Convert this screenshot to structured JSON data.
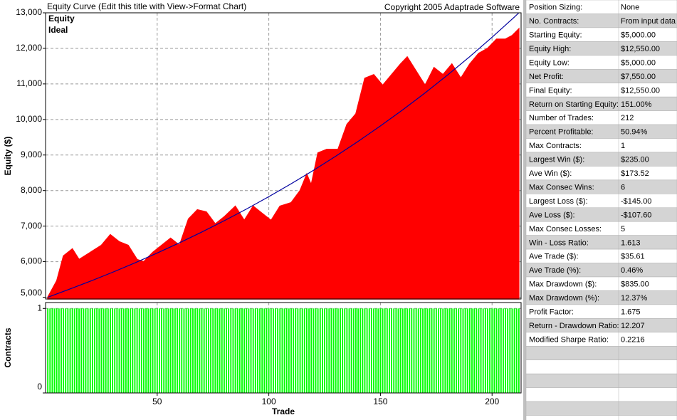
{
  "chart_data": [
    {
      "type": "area",
      "title": "Equity Curve (Edit this title with View->Format Chart)",
      "subtitle": "Copyright 2005 Adaptrade Software",
      "ylabel": "Equity ($)",
      "xlim": [
        0,
        213
      ],
      "xticks": [
        50,
        100,
        150,
        200
      ],
      "ylim": [
        4950,
        13000
      ],
      "yticks": [
        {
          "value": 5000,
          "label": "5,000"
        },
        {
          "value": 6000,
          "label": "6,000"
        },
        {
          "value": 7000,
          "label": "7,000"
        },
        {
          "value": 8000,
          "label": "8,000"
        },
        {
          "value": 9000,
          "label": "9,000"
        },
        {
          "value": 10000,
          "label": "10,000"
        },
        {
          "value": 11000,
          "label": "11,000"
        },
        {
          "value": 12000,
          "label": "12,000"
        },
        {
          "value": 13000,
          "label": "13,000"
        }
      ],
      "grid": true,
      "series": [
        {
          "name": "Equity",
          "color": "#ff0000",
          "x": [
            1,
            5,
            8,
            12,
            15,
            20,
            25,
            29,
            33,
            37,
            41,
            44,
            48,
            52,
            56,
            60,
            64,
            68,
            72,
            76,
            80,
            85,
            89,
            93,
            97,
            101,
            105,
            110,
            114,
            117,
            119,
            122,
            126,
            131,
            135,
            139,
            143,
            147,
            151,
            155,
            159,
            162,
            166,
            170,
            174,
            178,
            182,
            186,
            190,
            194,
            198,
            202,
            206,
            209,
            212
          ],
          "values": [
            5000,
            5460,
            6160,
            6360,
            6060,
            6260,
            6460,
            6760,
            6560,
            6460,
            6060,
            6000,
            6260,
            6460,
            6660,
            6460,
            7200,
            7460,
            7400,
            7060,
            7260,
            7560,
            7160,
            7560,
            7360,
            7160,
            7560,
            7660,
            8000,
            8460,
            8160,
            9060,
            9160,
            9160,
            9860,
            10160,
            11160,
            11260,
            10960,
            11260,
            11560,
            11760,
            11360,
            10960,
            11460,
            11260,
            11560,
            11160,
            11560,
            11860,
            12000,
            12260,
            12260,
            12360,
            12550
          ]
        },
        {
          "name": "Ideal",
          "color": "#0000a0",
          "x": [
            1,
            10,
            20,
            30,
            40,
            50,
            60,
            70,
            80,
            90,
            100,
            110,
            120,
            130,
            140,
            150,
            160,
            170,
            180,
            190,
            200,
            210,
            212
          ],
          "values": [
            5000,
            5208,
            5449,
            5701,
            5965,
            6242,
            6531,
            6834,
            7150,
            7481,
            7828,
            8191,
            8570,
            8968,
            9383,
            9818,
            10272,
            10748,
            11246,
            11767,
            12312,
            12882,
            13000
          ]
        }
      ]
    },
    {
      "type": "bar",
      "ylabel": "Contracts",
      "xlabel": "Trade",
      "xlim": [
        0,
        213
      ],
      "xticks": [
        50,
        100,
        150,
        200
      ],
      "ylim": [
        0,
        1.07
      ],
      "yticks": [
        0,
        1
      ],
      "grid": true,
      "color": "#00ff00",
      "x": [
        1,
        2,
        3,
        4,
        5,
        6,
        7,
        8,
        9,
        10,
        11,
        12,
        13,
        14,
        15,
        16,
        17,
        18,
        19,
        20,
        21,
        22,
        23,
        24,
        25,
        26,
        27,
        28,
        29,
        30,
        31,
        32,
        33,
        34,
        35,
        36,
        37,
        38,
        39,
        40,
        41,
        42,
        43,
        44,
        45,
        46,
        47,
        48,
        49,
        50,
        51,
        52,
        53,
        54,
        55,
        56,
        57,
        58,
        59,
        60,
        61,
        62,
        63,
        64,
        65,
        66,
        67,
        68,
        69,
        70,
        71,
        72,
        73,
        74,
        75,
        76,
        77,
        78,
        79,
        80,
        81,
        82,
        83,
        84,
        85,
        86,
        87,
        88,
        89,
        90,
        91,
        92,
        93,
        94,
        95,
        96,
        97,
        98,
        99,
        100,
        101,
        102,
        103,
        104,
        105,
        106,
        107,
        108,
        109,
        110,
        111,
        112,
        113,
        114,
        115,
        116,
        117,
        118,
        119,
        120,
        121,
        122,
        123,
        124,
        125,
        126,
        127,
        128,
        129,
        130,
        131,
        132,
        133,
        134,
        135,
        136,
        137,
        138,
        139,
        140,
        141,
        142,
        143,
        144,
        145,
        146,
        147,
        148,
        149,
        150,
        151,
        152,
        153,
        154,
        155,
        156,
        157,
        158,
        159,
        160,
        161,
        162,
        163,
        164,
        165,
        166,
        167,
        168,
        169,
        170,
        171,
        172,
        173,
        174,
        175,
        176,
        177,
        178,
        179,
        180,
        181,
        182,
        183,
        184,
        185,
        186,
        187,
        188,
        189,
        190,
        191,
        192,
        193,
        194,
        195,
        196,
        197,
        198,
        199,
        200,
        201,
        202,
        203,
        204,
        205,
        206,
        207,
        208,
        209,
        210,
        211,
        212
      ],
      "values": [
        1,
        1,
        1,
        1,
        1,
        1,
        1,
        1,
        1,
        1,
        1,
        1,
        1,
        1,
        1,
        1,
        1,
        1,
        1,
        1,
        1,
        1,
        1,
        1,
        1,
        1,
        1,
        1,
        1,
        1,
        1,
        1,
        1,
        1,
        1,
        1,
        1,
        1,
        1,
        1,
        1,
        1,
        1,
        1,
        1,
        1,
        1,
        1,
        1,
        1,
        1,
        1,
        1,
        1,
        1,
        1,
        1,
        1,
        1,
        1,
        1,
        1,
        1,
        1,
        1,
        1,
        1,
        1,
        1,
        1,
        1,
        1,
        1,
        1,
        1,
        1,
        1,
        1,
        1,
        1,
        1,
        1,
        1,
        1,
        1,
        1,
        1,
        1,
        1,
        1,
        1,
        1,
        1,
        1,
        1,
        1,
        1,
        1,
        1,
        1,
        1,
        1,
        1,
        1,
        1,
        1,
        1,
        1,
        1,
        1,
        1,
        1,
        1,
        1,
        1,
        1,
        1,
        1,
        1,
        1,
        1,
        1,
        1,
        1,
        1,
        1,
        1,
        1,
        1,
        1,
        1,
        1,
        1,
        1,
        1,
        1,
        1,
        1,
        1,
        1,
        1,
        1,
        1,
        1,
        1,
        1,
        1,
        1,
        1,
        1,
        1,
        1,
        1,
        1,
        1,
        1,
        1,
        1,
        1,
        1,
        1,
        1,
        1,
        1,
        1,
        1,
        1,
        1,
        1,
        1,
        1,
        1,
        1,
        1,
        1,
        1,
        1,
        1,
        1,
        1,
        1,
        1,
        1,
        1,
        1,
        1,
        1,
        1,
        1,
        1,
        1,
        1,
        1,
        1,
        1,
        1,
        1,
        1,
        1,
        1,
        1,
        1,
        1,
        1,
        1,
        1,
        1,
        1,
        1,
        1,
        1,
        1
      ]
    }
  ],
  "table": {
    "rows": [
      [
        "Position Sizing:",
        "None"
      ],
      [
        "No. Contracts:",
        "From input data"
      ],
      [
        "Starting Equity:",
        "$5,000.00"
      ],
      [
        "Equity High:",
        "$12,550.00"
      ],
      [
        "Equity Low:",
        "$5,000.00"
      ],
      [
        "Net Profit:",
        "$7,550.00"
      ],
      [
        "Final Equity:",
        "$12,550.00"
      ],
      [
        "Return on Starting Equity:",
        "151.00%"
      ],
      [
        "Number of Trades:",
        "212"
      ],
      [
        "Percent Profitable:",
        "50.94%"
      ],
      [
        "Max Contracts:",
        "1"
      ],
      [
        "Largest Win ($):",
        "$235.00"
      ],
      [
        "Ave Win ($):",
        "$173.52"
      ],
      [
        "Max Consec Wins:",
        "6"
      ],
      [
        "Largest Loss ($):",
        "-$145.00"
      ],
      [
        "Ave Loss ($):",
        "-$107.60"
      ],
      [
        "Max Consec Losses:",
        "5"
      ],
      [
        "Win - Loss Ratio:",
        "1.613"
      ],
      [
        "Ave Trade ($):",
        "$35.61"
      ],
      [
        "Ave Trade (%):",
        "0.46%"
      ],
      [
        "Max Drawdown ($):",
        "$835.00"
      ],
      [
        "Max Drawdown (%):",
        "12.37%"
      ],
      [
        "Profit Factor:",
        "1.675"
      ],
      [
        "Return - Drawdown Ratio:",
        "12.207"
      ],
      [
        "Modified Sharpe Ratio:",
        "0.2216"
      ]
    ]
  }
}
